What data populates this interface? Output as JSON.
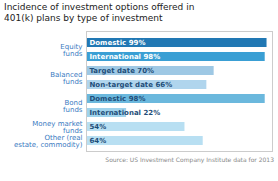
{
  "chart_data": {
    "type": "bar",
    "orientation": "horizontal",
    "title": "Incidence of investment options offered in\n401(k) plans by type of investment",
    "caption": "Source: US Investment Company Institute data for 2013",
    "groups": [
      "Equity\nfunds",
      "Equity\nfunds",
      "Balanced\nfunds",
      "Balanced\nfunds",
      "Bond\nfunds",
      "Bond\nfunds",
      "Money market\nfunds",
      "Other (real\nestate, commodity)"
    ],
    "values": [
      99,
      98,
      70,
      66,
      98,
      22,
      54,
      64
    ],
    "value_labels": [
      "Domestic 99%",
      "International 98%",
      "Target date 70%",
      "Non-target date 66%",
      "Domestic 98%",
      "International 22%",
      "54%",
      "64%"
    ],
    "colors": [
      "#2178b4",
      "#3a9fd4",
      "#9ec8e4",
      "#b0d5ed",
      "#6bb8dd",
      "#9fd3ec",
      "#b8dff2",
      "#b8dff2"
    ],
    "xlim": [
      0,
      102
    ],
    "xticks": [],
    "data_labels": true,
    "tick_labels": false
  }
}
